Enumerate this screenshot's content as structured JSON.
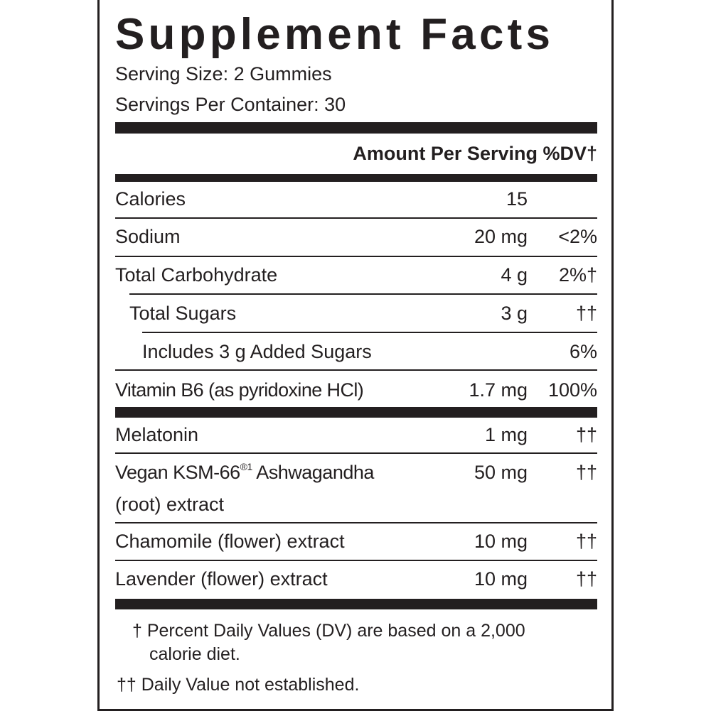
{
  "title": "Supplement Facts",
  "serving_size": "Serving Size: 2 Gummies",
  "servings_per_container": "Servings Per Container: 30",
  "header": "Amount Per Serving %DV†",
  "rows": [
    {
      "label": "Calories",
      "amount": "15",
      "dv": ""
    },
    {
      "label": "Sodium",
      "amount": "20 mg",
      "dv": "<2%"
    },
    {
      "label": "Total Carbohydrate",
      "amount": "4 g",
      "dv": "2%†"
    },
    {
      "label": "Total Sugars",
      "amount": "3 g",
      "dv": "††"
    },
    {
      "label": "Includes 3 g Added Sugars",
      "amount": "",
      "dv": "6%"
    },
    {
      "label": "Vitamin B6 (as pyridoxine HCl)",
      "amount": "1.7 mg",
      "dv": "100%"
    },
    {
      "label": "Melatonin",
      "amount": "1 mg",
      "dv": "††"
    },
    {
      "label": "Vegan KSM-66",
      "label_sup": "®1",
      "label_rest": " Ashwagandha",
      "label_line2": "(root) extract",
      "amount": "50 mg",
      "dv": "††"
    },
    {
      "label": "Chamomile (flower) extract",
      "amount": "10 mg",
      "dv": "††"
    },
    {
      "label": "Lavender (flower) extract",
      "amount": "10 mg",
      "dv": "††"
    }
  ],
  "footnotes": {
    "dv_line1": "† Percent Daily Values (DV) are based on a 2,000",
    "dv_line2": "calorie diet.",
    "not_established": "†† Daily Value not established."
  }
}
